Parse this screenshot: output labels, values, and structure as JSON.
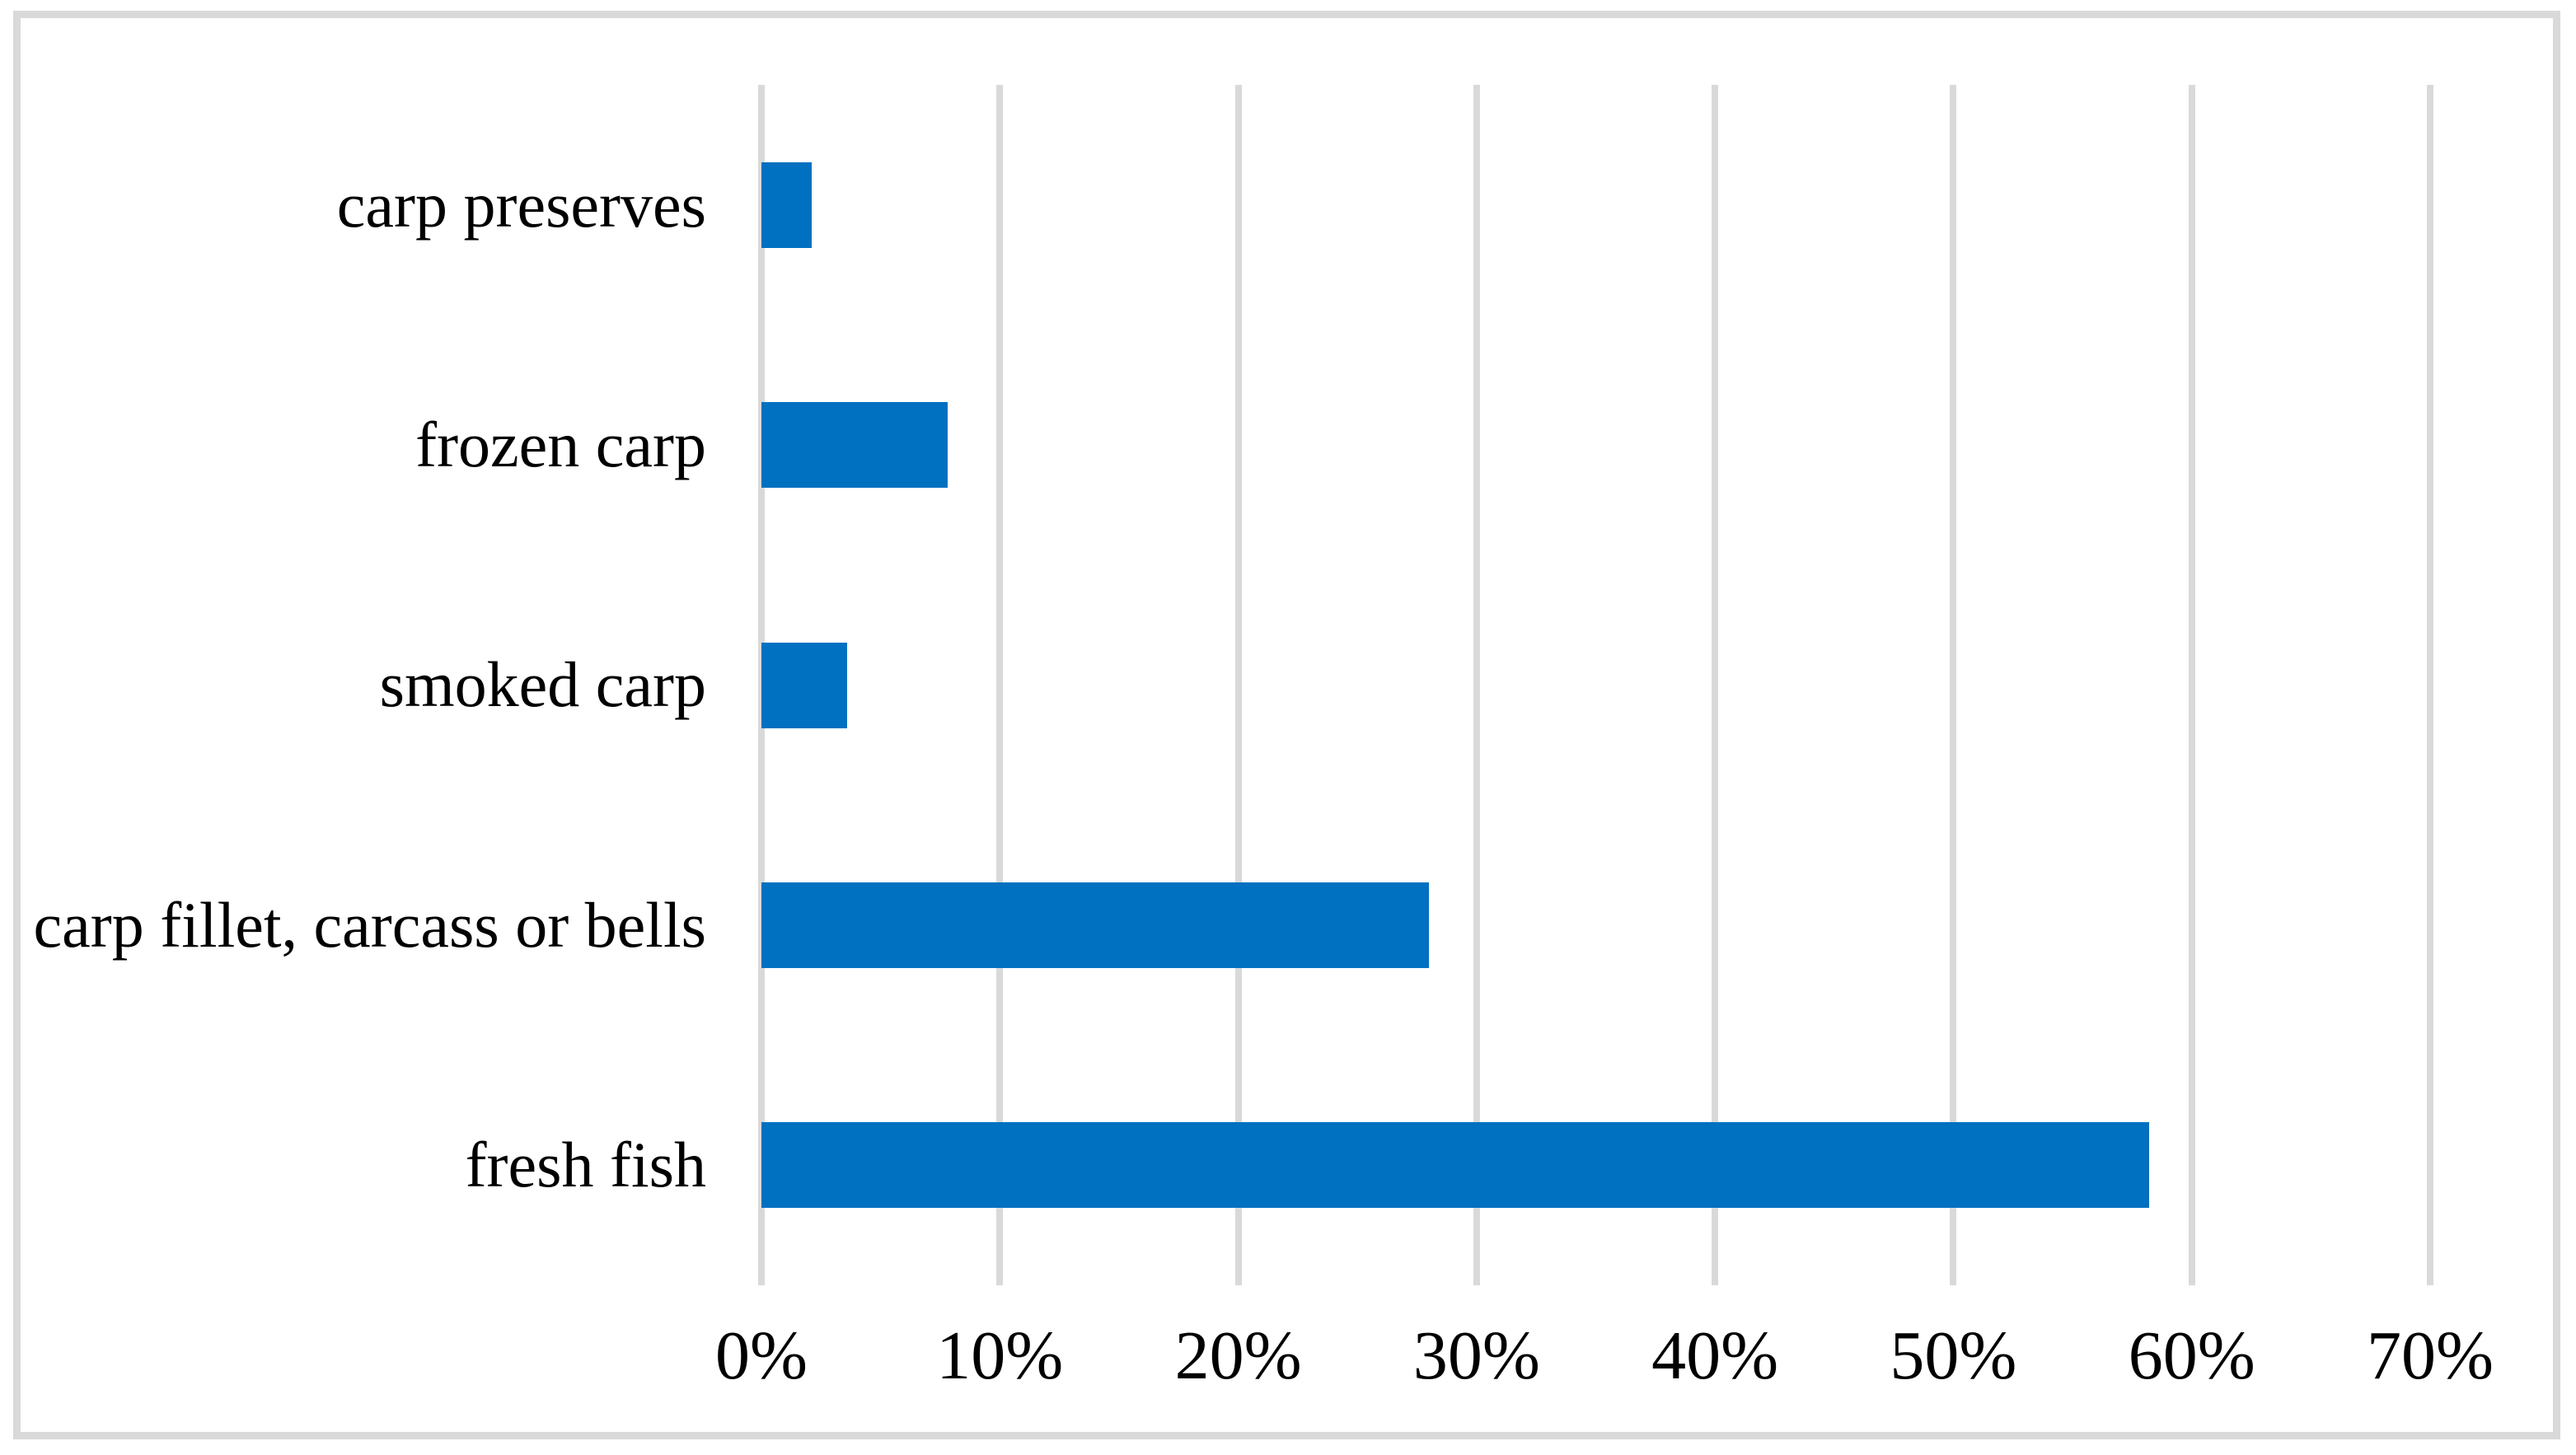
{
  "chart_data": {
    "type": "bar",
    "orientation": "horizontal",
    "title": "",
    "xlabel": "",
    "ylabel": "",
    "categories": [
      "carp preserves",
      "frozen carp",
      "smoked carp",
      "carp fillet, carcass or bells",
      "fresh fish"
    ],
    "values": [
      2.1,
      7.8,
      3.6,
      28.0,
      58.2
    ],
    "value_unit": "%",
    "xlim": [
      0,
      70
    ],
    "xtick_values": [
      0,
      10,
      20,
      30,
      40,
      50,
      60,
      70
    ],
    "xticks": [
      "0%",
      "10%",
      "20%",
      "30%",
      "40%",
      "50%",
      "60%",
      "70%"
    ],
    "grid": "vertical",
    "legend": "none",
    "colors": {
      "bar": "#0070c0",
      "gridline": "#d9d9d9",
      "border": "#d9d9d9",
      "text": "#000000",
      "background": "#ffffff"
    }
  }
}
